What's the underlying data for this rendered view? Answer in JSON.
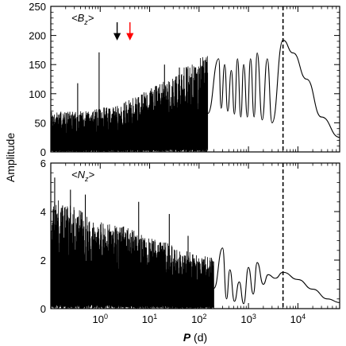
{
  "figure": {
    "ylabel": "Amplitude",
    "xlabel_var": "P",
    "xlabel_unit": "(d)"
  },
  "chart_data": [
    {
      "type": "line",
      "panel": "top",
      "annotation": {
        "open": "<",
        "var": "B",
        "sub": "z",
        "close": ">"
      },
      "x_scale": "log",
      "xlim": [
        0.1,
        70000
      ],
      "ylim": [
        0,
        250
      ],
      "yticks": [
        0,
        50,
        100,
        150,
        200,
        250
      ],
      "xticks_shown": false,
      "dashed_vline_x": 5000,
      "arrows": [
        {
          "x": 2.2,
          "color": "#000000"
        },
        {
          "x": 4.0,
          "color": "#ff0000"
        }
      ],
      "series": [
        {
          "color": "#000000",
          "noise_envelope": [
            [
              0.1,
              70
            ],
            [
              0.5,
              70
            ],
            [
              1.0,
              75
            ],
            [
              2.0,
              80
            ],
            [
              4.0,
              90
            ],
            [
              10,
              110
            ],
            [
              30,
              130
            ],
            [
              80,
              160
            ],
            [
              150,
              165
            ]
          ],
          "spikes": [
            [
              0.95,
              171
            ],
            [
              0.35,
              118
            ],
            [
              20,
              150
            ],
            [
              40,
              145
            ]
          ],
          "peaks": [
            [
              250,
              160
            ],
            [
              330,
              150
            ],
            [
              450,
              140
            ],
            [
              600,
              160
            ],
            [
              800,
              150
            ],
            [
              1100,
              160
            ],
            [
              1500,
              170
            ],
            [
              2400,
              160
            ],
            [
              5000,
              192
            ]
          ],
          "valleys": [
            [
              280,
              75
            ],
            [
              380,
              70
            ],
            [
              520,
              65
            ],
            [
              700,
              60
            ],
            [
              950,
              60
            ],
            [
              1300,
              60
            ],
            [
              1900,
              55
            ],
            [
              3000,
              50
            ]
          ],
          "tail": [
            [
              5000,
              192
            ],
            [
              8000,
              170
            ],
            [
              15000,
              125
            ],
            [
              30000,
              60
            ],
            [
              70000,
              25
            ]
          ]
        }
      ]
    },
    {
      "type": "line",
      "panel": "bottom",
      "annotation": {
        "open": "<",
        "var": "N",
        "sub": "z",
        "close": ">"
      },
      "x_scale": "log",
      "xlim": [
        0.1,
        70000
      ],
      "ylim": [
        0,
        6
      ],
      "yticks": [
        0,
        2,
        4,
        6
      ],
      "xticks": [
        1,
        10,
        100,
        1000,
        10000
      ],
      "xtick_labels": [
        {
          "base": "10",
          "exp": "0"
        },
        {
          "base": "10",
          "exp": "1"
        },
        {
          "base": "10",
          "exp": "2"
        },
        {
          "base": "10",
          "exp": "3"
        },
        {
          "base": "10",
          "exp": "4"
        }
      ],
      "dashed_vline_x": 5000,
      "series": [
        {
          "color": "#000000",
          "noise_envelope": [
            [
              0.1,
              4.6
            ],
            [
              0.3,
              4.2
            ],
            [
              1.0,
              3.6
            ],
            [
              3.0,
              3.4
            ],
            [
              10,
              3.0
            ],
            [
              30,
              2.6
            ],
            [
              100,
              2.2
            ],
            [
              200,
              2.1
            ]
          ],
          "spikes": [
            [
              0.12,
              5.4
            ],
            [
              0.25,
              4.9
            ],
            [
              0.5,
              4.7
            ],
            [
              6,
              4.4
            ],
            [
              25,
              3.9
            ],
            [
              60,
              3.0
            ]
          ],
          "peaks": [
            [
              300,
              2.5
            ],
            [
              420,
              1.6
            ],
            [
              650,
              1.1
            ],
            [
              1000,
              1.7
            ],
            [
              1500,
              1.9
            ],
            [
              2500,
              1.4
            ],
            [
              5000,
              1.5
            ]
          ],
          "valleys": [
            [
              360,
              0.4
            ],
            [
              520,
              0.3
            ],
            [
              800,
              0.2
            ],
            [
              1250,
              0.6
            ],
            [
              2000,
              1.0
            ],
            [
              3500,
              1.25
            ]
          ],
          "tail": [
            [
              5000,
              1.5
            ],
            [
              10000,
              1.2
            ],
            [
              20000,
              0.8
            ],
            [
              40000,
              0.4
            ],
            [
              70000,
              0.25
            ]
          ]
        }
      ]
    }
  ]
}
